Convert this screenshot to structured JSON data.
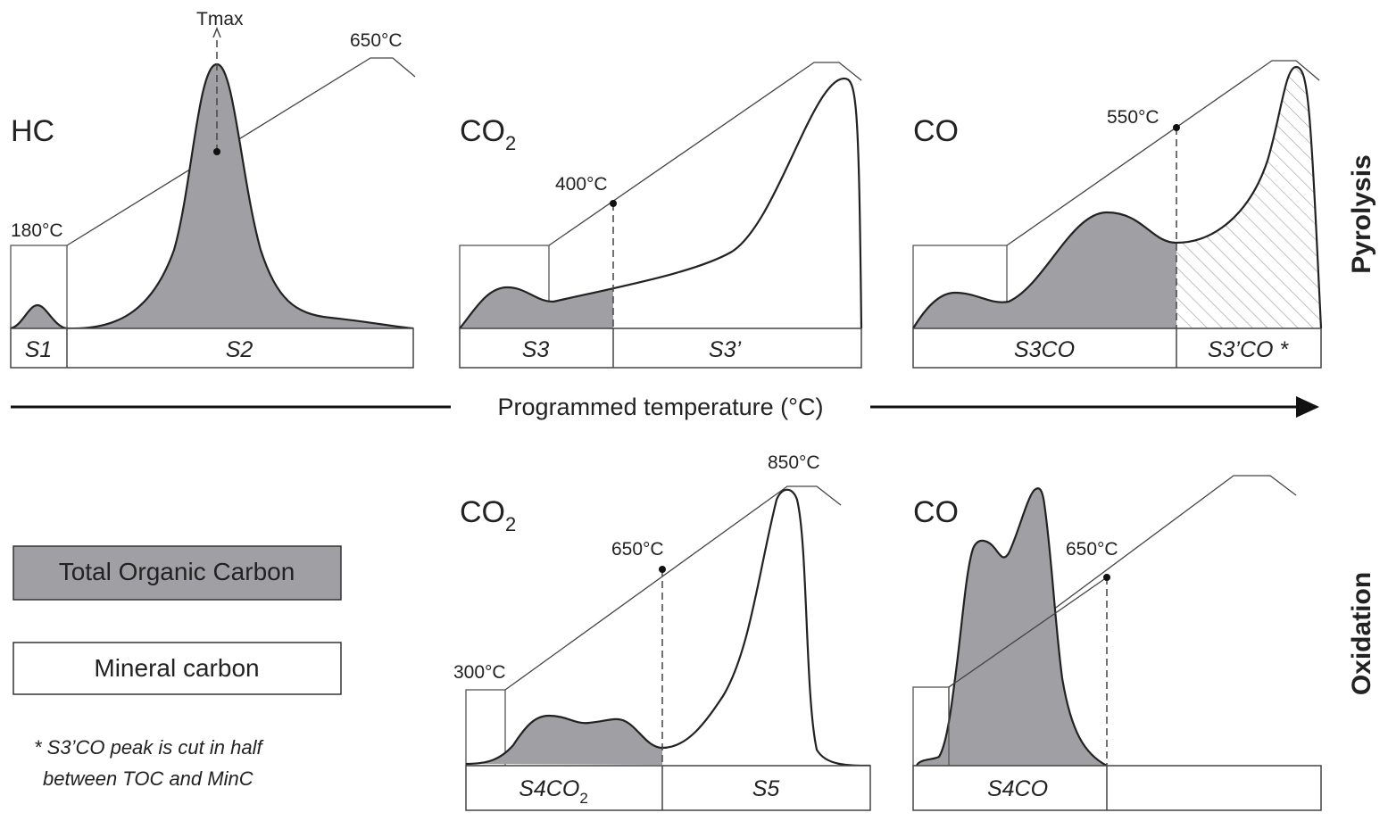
{
  "colors": {
    "toc_fill": "#a0a0a4",
    "line": "#222222"
  },
  "axis": {
    "label": "Programmed temperature (°C)"
  },
  "sections": {
    "pyrolysis": "Pyrolysis",
    "oxidation": "Oxidation"
  },
  "panels": {
    "hc": {
      "gas": "HC",
      "t_start": "180°C",
      "t_end": "650°C",
      "tmax": "Tmax",
      "peaks": [
        "S1",
        "S2"
      ]
    },
    "co2_pyro": {
      "gas": "CO",
      "sub": "2",
      "t_mark": "400°C",
      "peaks": [
        "S3",
        "S3’"
      ]
    },
    "co_pyro": {
      "gas": "CO",
      "t_mark": "550°C",
      "peaks": [
        "S3CO",
        "S3’CO *"
      ]
    },
    "co2_ox": {
      "gas": "CO",
      "sub": "2",
      "t_start": "300°C",
      "t_mark": "650°C",
      "t_end": "850°C",
      "peaks": [
        "S4CO",
        "S5"
      ],
      "peak1_sub": "2"
    },
    "co_ox": {
      "gas": "CO",
      "t_mark": "650°C",
      "peaks": [
        "S4CO"
      ]
    }
  },
  "legend": {
    "toc": "Total Organic Carbon",
    "minc": "Mineral carbon"
  },
  "footnote": [
    "* S3’CO peak is cut in half",
    "between TOC and MinC"
  ]
}
